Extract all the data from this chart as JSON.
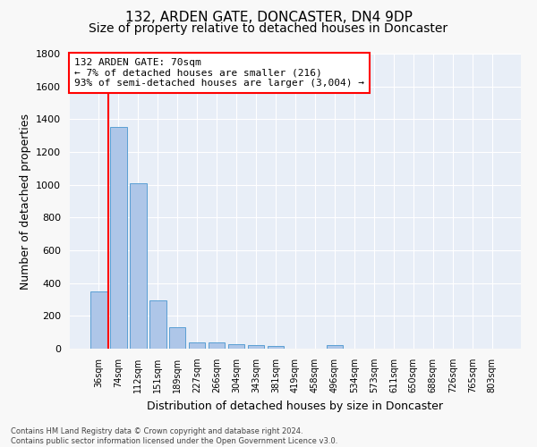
{
  "title": "132, ARDEN GATE, DONCASTER, DN4 9DP",
  "subtitle": "Size of property relative to detached houses in Doncaster",
  "xlabel": "Distribution of detached houses by size in Doncaster",
  "ylabel": "Number of detached properties",
  "bar_labels": [
    "36sqm",
    "74sqm",
    "112sqm",
    "151sqm",
    "189sqm",
    "227sqm",
    "266sqm",
    "304sqm",
    "343sqm",
    "381sqm",
    "419sqm",
    "458sqm",
    "496sqm",
    "534sqm",
    "573sqm",
    "611sqm",
    "650sqm",
    "688sqm",
    "726sqm",
    "765sqm",
    "803sqm"
  ],
  "bar_values": [
    350,
    1355,
    1010,
    295,
    130,
    40,
    38,
    30,
    20,
    16,
    0,
    0,
    22,
    0,
    0,
    0,
    0,
    0,
    0,
    0,
    0
  ],
  "bar_color": "#aec6e8",
  "bar_edge_color": "#5a9fd4",
  "background_color": "#e8eef7",
  "grid_color": "#ffffff",
  "annotation_line1": "132 ARDEN GATE: 70sqm",
  "annotation_line2": "← 7% of detached houses are smaller (216)",
  "annotation_line3": "93% of semi-detached houses are larger (3,004) →",
  "ylim": [
    0,
    1800
  ],
  "yticks": [
    0,
    200,
    400,
    600,
    800,
    1000,
    1200,
    1400,
    1600,
    1800
  ],
  "footnote_line1": "Contains HM Land Registry data © Crown copyright and database right 2024.",
  "footnote_line2": "Contains public sector information licensed under the Open Government Licence v3.0.",
  "title_fontsize": 11,
  "subtitle_fontsize": 10,
  "ylabel_fontsize": 9,
  "xlabel_fontsize": 9,
  "fig_bg": "#f8f8f8"
}
